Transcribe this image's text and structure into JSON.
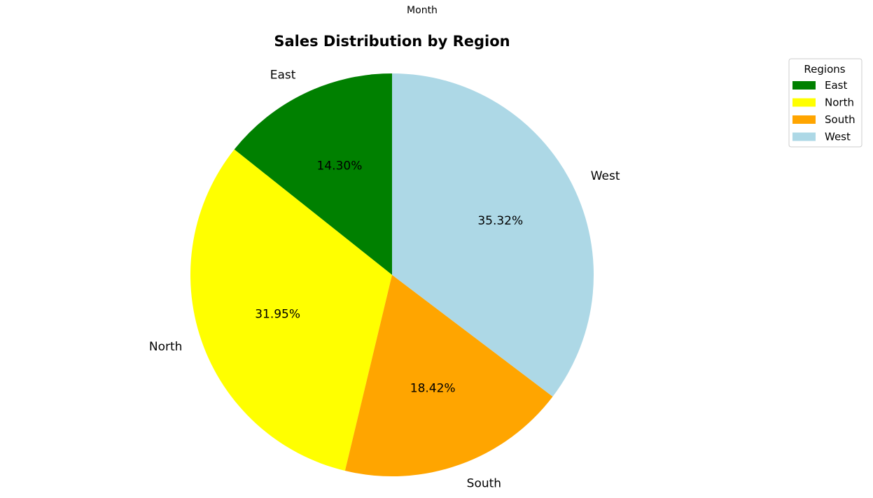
{
  "top_label": "Month",
  "chart_data": {
    "type": "pie",
    "title": "Sales Distribution by Region",
    "categories": [
      "East",
      "North",
      "South",
      "West"
    ],
    "values": [
      14.3,
      31.95,
      18.42,
      35.32
    ],
    "percent_labels": [
      "14.30%",
      "31.95%",
      "18.42%",
      "35.32%"
    ],
    "colors": [
      "#008000",
      "#ffff00",
      "#ffa500",
      "#add8e6"
    ],
    "start_angle_deg": 90,
    "direction": "counterclockwise",
    "legend": {
      "title": "Regions",
      "placement": "top-right",
      "entries": [
        "East",
        "North",
        "South",
        "West"
      ]
    }
  }
}
